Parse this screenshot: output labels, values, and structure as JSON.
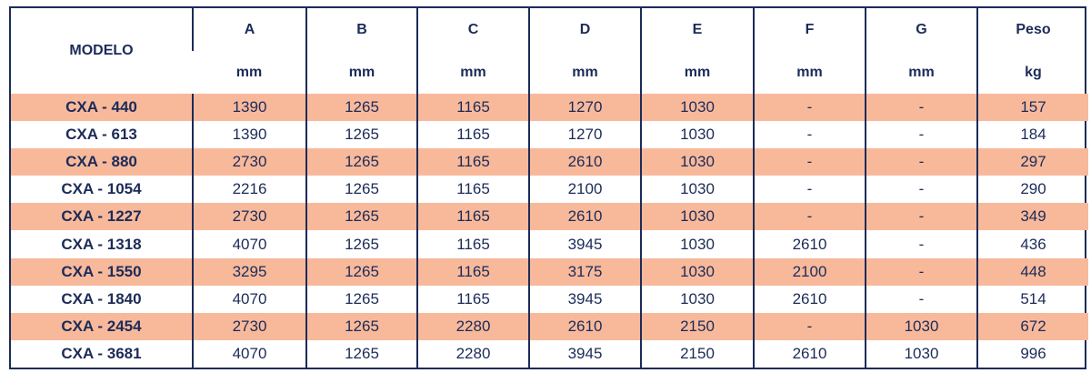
{
  "table": {
    "header": {
      "model": "MODELO",
      "columns": [
        {
          "label": "A",
          "unit": "mm"
        },
        {
          "label": "B",
          "unit": "mm"
        },
        {
          "label": "C",
          "unit": "mm"
        },
        {
          "label": "D",
          "unit": "mm"
        },
        {
          "label": "E",
          "unit": "mm"
        },
        {
          "label": "F",
          "unit": "mm"
        },
        {
          "label": "G",
          "unit": "mm"
        },
        {
          "label": "Peso",
          "unit": "kg"
        }
      ]
    },
    "rows": [
      [
        "CXA - 440",
        1390,
        1265,
        1165,
        1270,
        1030,
        "-",
        "-",
        157
      ],
      [
        "CXA - 613",
        1390,
        1265,
        1165,
        1270,
        1030,
        "-",
        "-",
        184
      ],
      [
        "CXA - 880",
        2730,
        1265,
        1165,
        2610,
        1030,
        "-",
        "-",
        297
      ],
      [
        "CXA - 1054",
        2216,
        1265,
        1165,
        2100,
        1030,
        "-",
        "-",
        290
      ],
      [
        "CXA - 1227",
        2730,
        1265,
        1165,
        2610,
        1030,
        "-",
        "-",
        349
      ],
      [
        "CXA - 1318",
        4070,
        1265,
        1165,
        3945,
        1030,
        2610,
        "-",
        436
      ],
      [
        "CXA - 1550",
        3295,
        1265,
        1165,
        3175,
        1030,
        2100,
        "-",
        448
      ],
      [
        "CXA - 1840",
        4070,
        1265,
        1165,
        3945,
        1030,
        2610,
        "-",
        514
      ],
      [
        "CXA - 2454",
        2730,
        1265,
        2280,
        2610,
        2150,
        "-",
        1030,
        672
      ],
      [
        "CXA - 3681",
        4070,
        1265,
        2280,
        3945,
        2150,
        2610,
        1030,
        996
      ]
    ]
  }
}
